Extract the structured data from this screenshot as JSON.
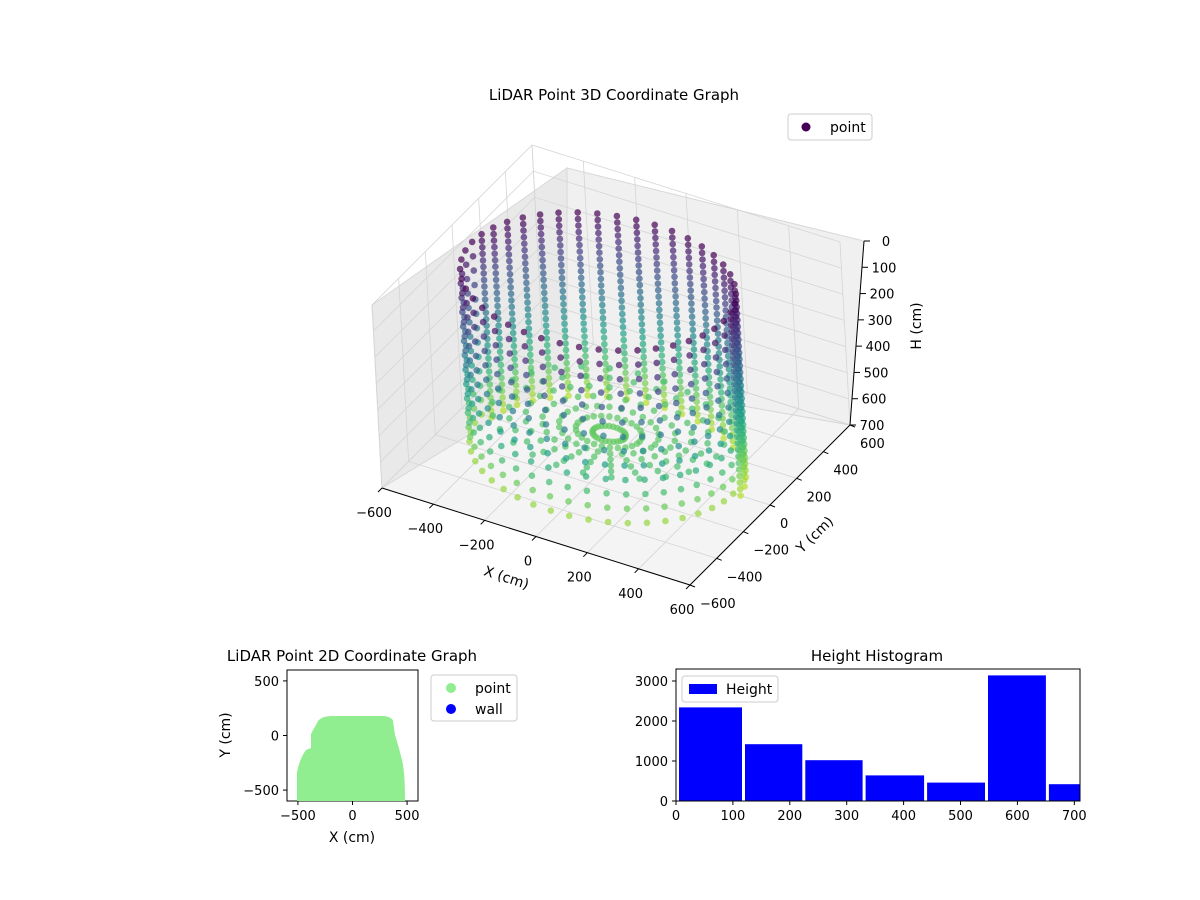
{
  "chart_data": [
    {
      "type": "scatter3d",
      "title": "LiDAR Point 3D Coordinate Graph",
      "xlabel": "X (cm)",
      "ylabel": "Y (cm)",
      "zlabel": "H (cm)",
      "xlim": [
        -600,
        600
      ],
      "ylim": [
        -600,
        600
      ],
      "zlim": [
        700,
        0
      ],
      "zaxis_inverted": true,
      "x_ticks": [
        "−600",
        "−400",
        "−200",
        "0",
        "200",
        "400",
        "600"
      ],
      "y_ticks": [
        "−600",
        "−400",
        "−200",
        "0",
        "200",
        "400",
        "600"
      ],
      "z_ticks": [
        "0",
        "100",
        "200",
        "300",
        "400",
        "500",
        "600",
        "700"
      ],
      "legend": [
        {
          "label": "point",
          "color": "#440154"
        }
      ],
      "legend_position": "upper-right",
      "colormap": "viridis",
      "grid": true,
      "shape": "cylindrical wall of points, radius about 500 cm, heights 0 to 700 cm, partially open toward viewer, with a dense floor region at high H"
    },
    {
      "type": "scatter",
      "title": "LiDAR Point 2D Coordinate Graph",
      "xlabel": "X (cm)",
      "ylabel": "Y (cm)",
      "xlim": [
        -600,
        600
      ],
      "ylim": [
        -600,
        600
      ],
      "x_ticks": [
        "−500",
        "0",
        "500"
      ],
      "y_ticks": [
        "−500",
        "0",
        "500"
      ],
      "series": [
        {
          "name": "point",
          "color": "#90ee90"
        },
        {
          "name": "wall",
          "color": "#0000ff"
        }
      ],
      "point_region": {
        "x_range": [
          -500,
          500
        ],
        "y_range": [
          -560,
          150
        ]
      },
      "legend_position": "outside-right"
    },
    {
      "type": "histogram",
      "title": "Height Histogram",
      "xlim": [
        0,
        710
      ],
      "ylim": [
        0,
        3300
      ],
      "x_ticks": [
        "0",
        "100",
        "200",
        "300",
        "400",
        "500",
        "600",
        "700"
      ],
      "y_ticks": [
        "0",
        "1000",
        "2000",
        "3000"
      ],
      "bins": [
        {
          "start": 0,
          "end": 116,
          "count": 2340
        },
        {
          "start": 116,
          "end": 222,
          "count": 1420
        },
        {
          "start": 222,
          "end": 328,
          "count": 1020
        },
        {
          "start": 328,
          "end": 436,
          "count": 640
        },
        {
          "start": 436,
          "end": 543,
          "count": 460
        },
        {
          "start": 543,
          "end": 650,
          "count": 3140
        },
        {
          "start": 650,
          "end": 710,
          "count": 420
        }
      ],
      "series": [
        {
          "name": "Height",
          "color": "#0000ff"
        }
      ],
      "legend_position": "upper-left"
    }
  ]
}
